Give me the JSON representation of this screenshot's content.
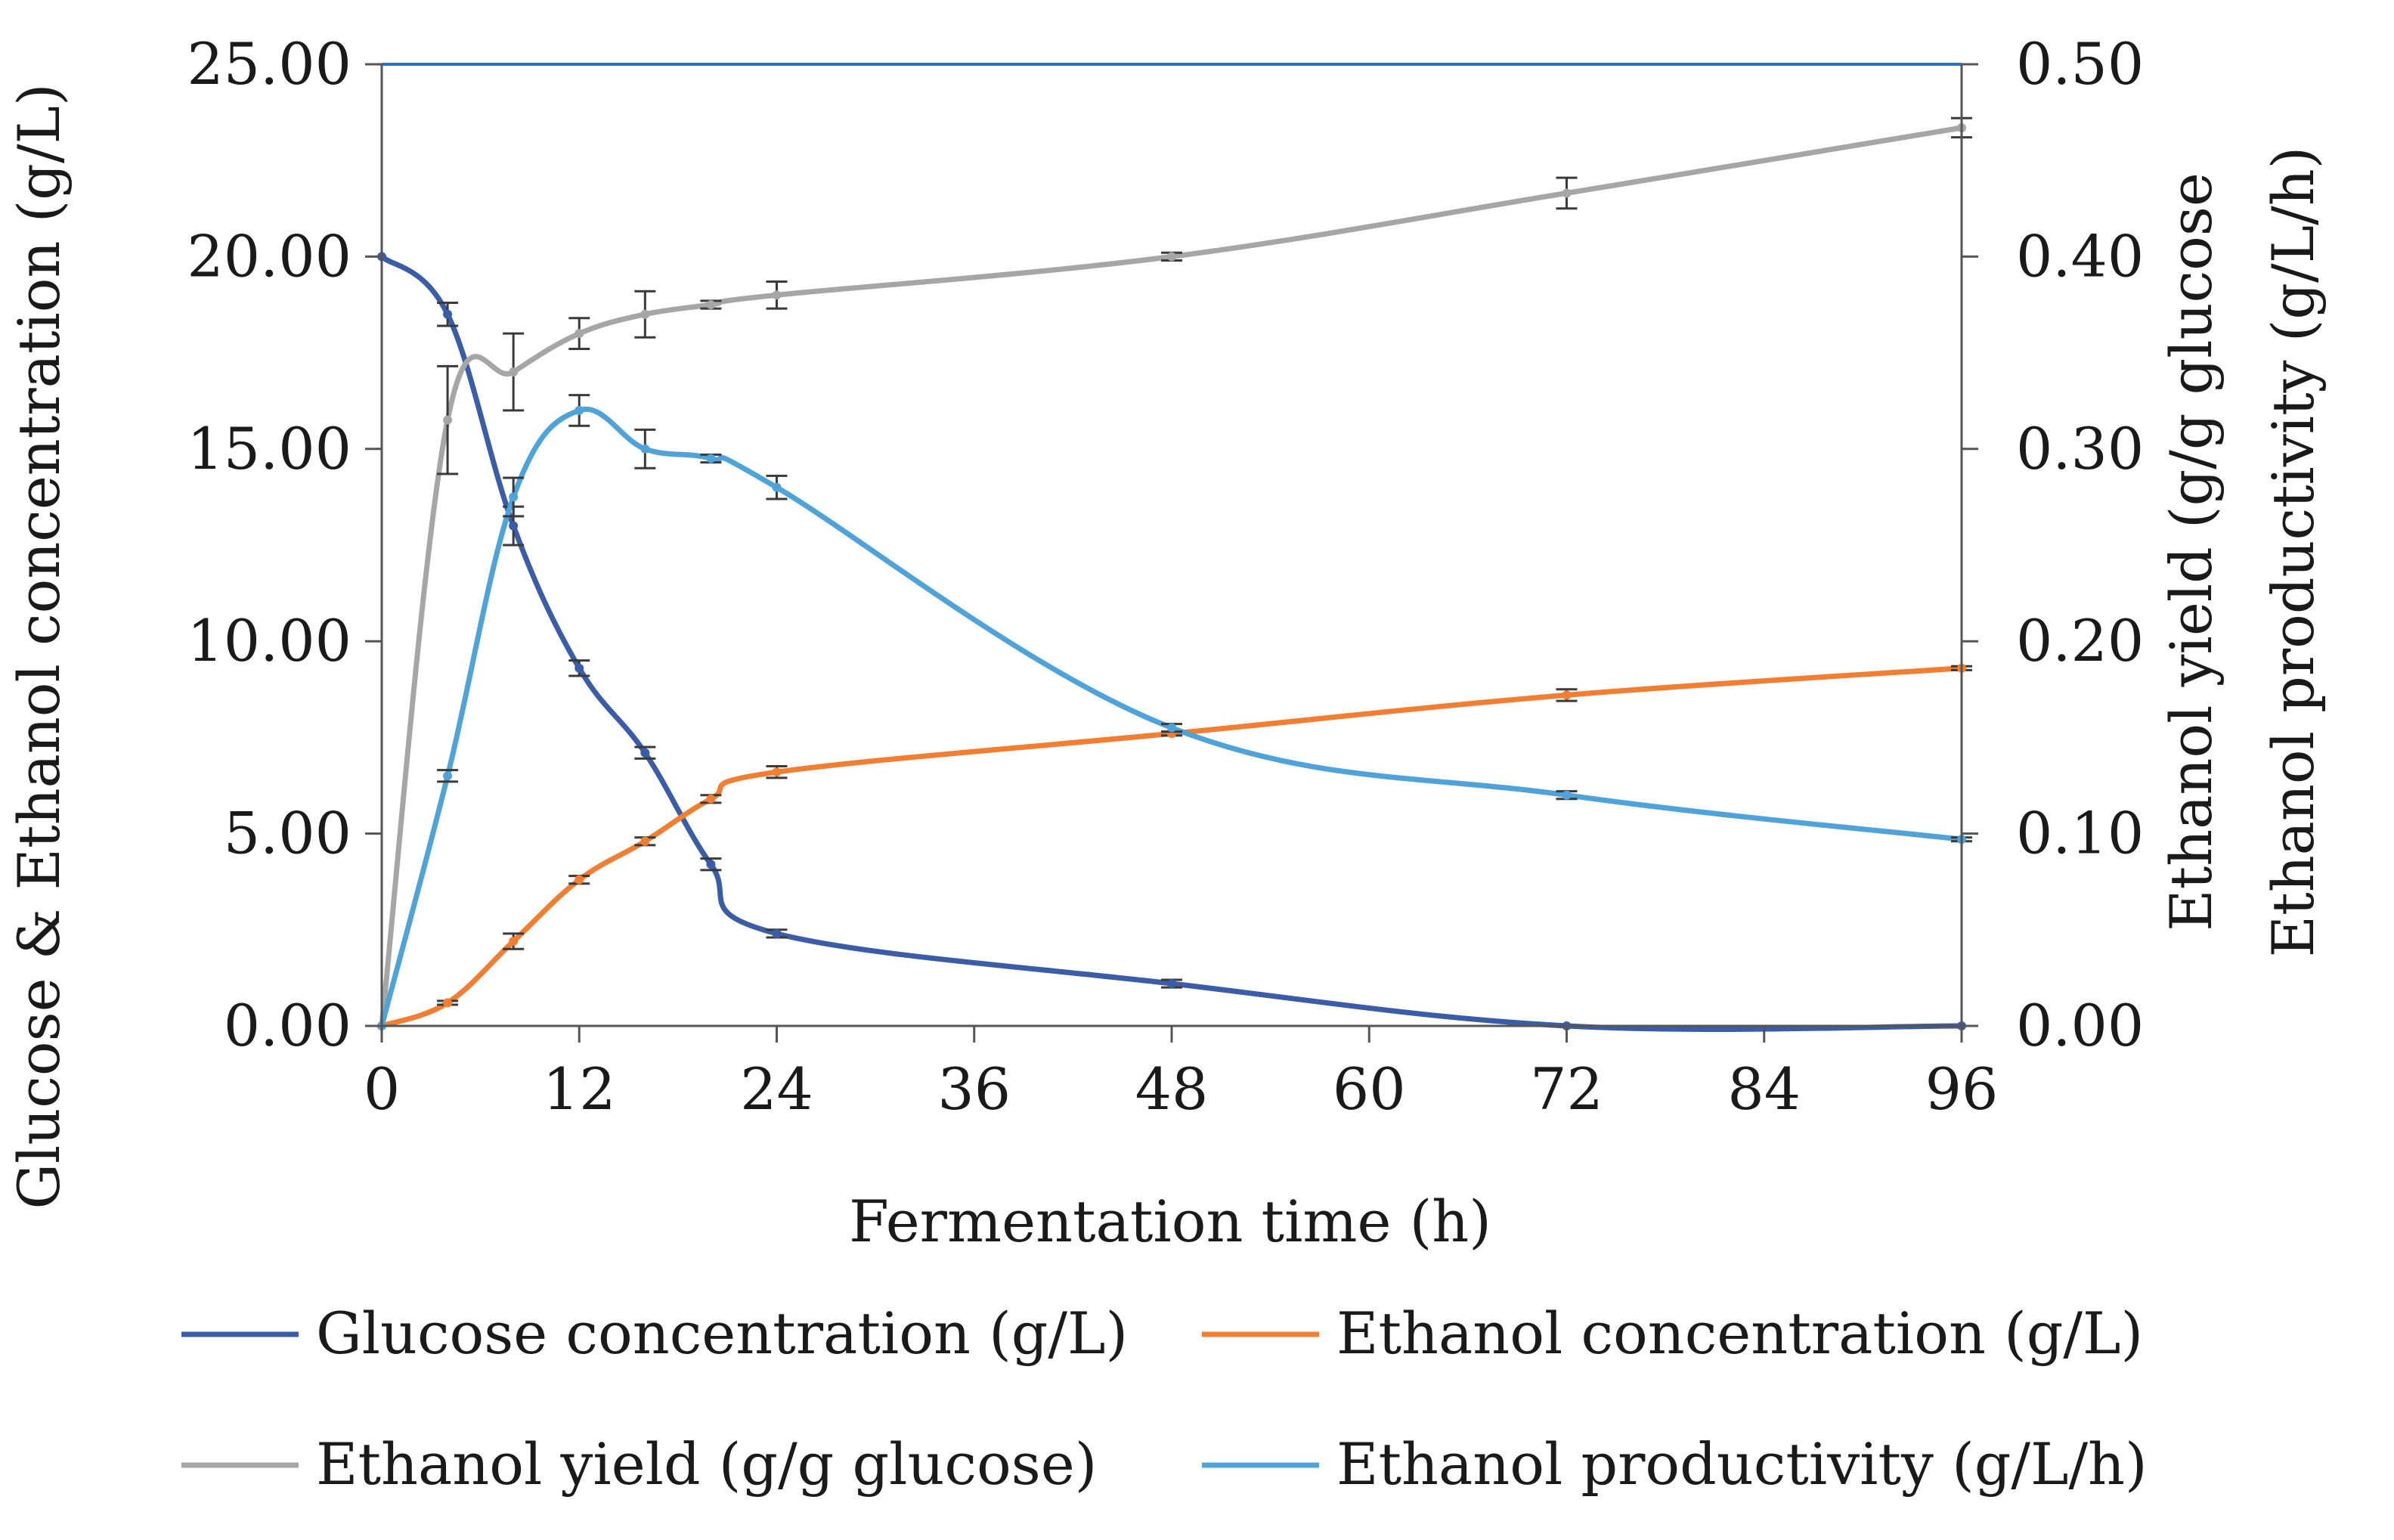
{
  "chart_data": {
    "type": "line",
    "title": "",
    "xlabel": "Fermentation time (h)",
    "ylabel_left": "Glucose & Ethanol concentration (g/L)",
    "ylabel_right": [
      "Ethanol yield (g/g glucose",
      "Ethanol productivity (g/L/h)"
    ],
    "xlim": [
      0,
      96
    ],
    "ylim_left": [
      0,
      25
    ],
    "ylim_right": [
      0,
      0.5
    ],
    "x_ticks": [
      "0",
      "12",
      "24",
      "36",
      "48",
      "60",
      "72",
      "84",
      "96"
    ],
    "y_left_ticks": [
      "0.00",
      "5.00",
      "10.00",
      "15.00",
      "20.00",
      "25.00"
    ],
    "y_right_ticks": [
      "0.00",
      "0.10",
      "0.20",
      "0.30",
      "0.40",
      "0.50"
    ],
    "legend": "bottom",
    "series": [
      {
        "name": "Glucose concentration (g/L)",
        "axis": "left",
        "color": "#3b5da8",
        "x": [
          0,
          4,
          8,
          12,
          16,
          20,
          24,
          48,
          72,
          96
        ],
        "values": [
          20.0,
          18.5,
          13.0,
          9.3,
          7.1,
          4.2,
          2.4,
          1.1,
          0.0,
          0.0
        ],
        "errors": [
          0.0,
          0.3,
          0.5,
          0.2,
          0.15,
          0.15,
          0.1,
          0.1,
          0.0,
          0.0
        ]
      },
      {
        "name": "Ethanol concentration (g/L)",
        "axis": "left",
        "color": "#f07f33",
        "x": [
          0,
          4,
          8,
          12,
          16,
          20,
          24,
          48,
          72,
          96
        ],
        "values": [
          0.0,
          0.6,
          2.2,
          3.8,
          4.8,
          5.9,
          6.6,
          7.6,
          8.6,
          9.3
        ],
        "errors": [
          0.0,
          0.05,
          0.2,
          0.1,
          0.1,
          0.1,
          0.15,
          0.05,
          0.15,
          0.05
        ]
      },
      {
        "name": "Ethanol yield (g/g glucose)",
        "axis": "right",
        "color": "#a6a6a6",
        "x": [
          0,
          4,
          8,
          12,
          16,
          20,
          24,
          48,
          72,
          96
        ],
        "values": [
          0.0,
          0.315,
          0.34,
          0.36,
          0.37,
          0.375,
          0.38,
          0.4,
          0.433,
          0.467
        ],
        "errors": [
          0.0,
          0.028,
          0.02,
          0.008,
          0.012,
          0.002,
          0.007,
          0.002,
          0.008,
          0.005
        ]
      },
      {
        "name": "Ethanol productivity (g/L/h)",
        "axis": "right",
        "color": "#4fa3d8",
        "x": [
          0,
          4,
          8,
          12,
          16,
          20,
          24,
          48,
          72,
          96
        ],
        "values": [
          0.0,
          0.13,
          0.275,
          0.32,
          0.3,
          0.295,
          0.28,
          0.155,
          0.12,
          0.097
        ],
        "errors": [
          0.0,
          0.003,
          0.01,
          0.008,
          0.01,
          0.002,
          0.006,
          0.002,
          0.002,
          0.001
        ]
      }
    ],
    "reference_line": {
      "axis": "left",
      "value": 25,
      "color": "#2e75b6"
    }
  }
}
